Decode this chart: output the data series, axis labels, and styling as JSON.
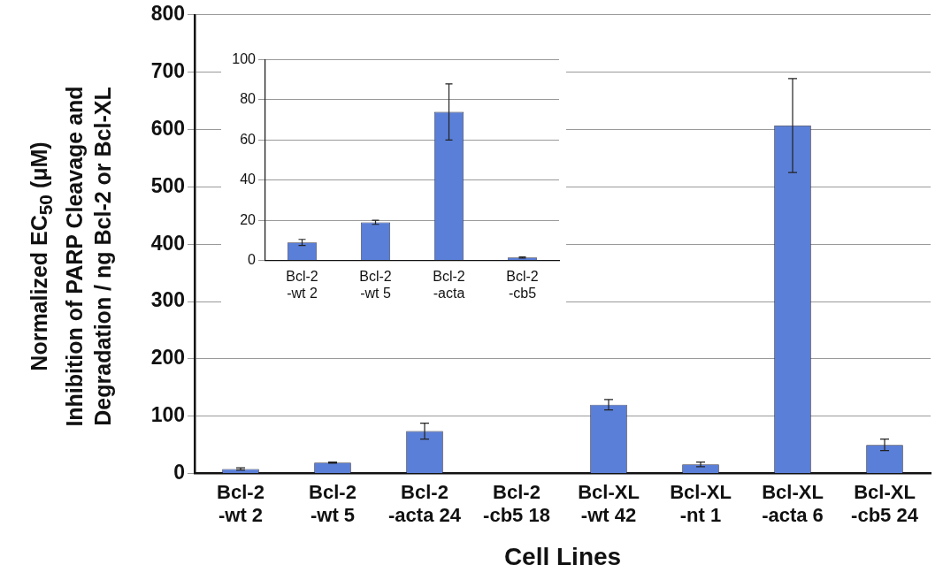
{
  "chart_data": [
    {
      "type": "bar",
      "xlabel": "Cell Lines",
      "ylabel": "Normalized EC$_{50}$ (μM)\nInhibition of PARP Cleavage and\nDegradation / ng Bcl-2 or Bcl-XL",
      "categories": [
        "Bcl-2 -wt 2",
        "Bcl-2 -wt 5",
        "Bcl-2 -acta 24",
        "Bcl-2 -cb5 18",
        "Bcl-XL -wt 42",
        "Bcl-XL -nt 1",
        "Bcl-XL -acta 6",
        "Bcl-XL -cb5 24"
      ],
      "values": [
        8,
        19,
        74,
        null,
        120,
        16,
        607,
        50
      ],
      "errors": [
        2,
        1,
        14,
        null,
        9,
        4,
        82,
        10
      ],
      "color": "#5a7fd8",
      "ylim": [
        0,
        800
      ],
      "yticks": [
        0,
        100,
        200,
        300,
        400,
        500,
        600,
        700,
        800
      ],
      "grid": "y"
    },
    {
      "type": "bar",
      "categories": [
        "Bcl-2 -wt 2",
        "Bcl-2 -wt 5",
        "Bcl-2 -acta",
        "Bcl-2 -cb5"
      ],
      "values": [
        9,
        19,
        74,
        1.5
      ],
      "errors": [
        1.5,
        1,
        14,
        0.3
      ],
      "color": "#5a7fd8",
      "ylim": [
        0,
        100
      ],
      "yticks": [
        0,
        20,
        40,
        60,
        80,
        100
      ],
      "grid": "y"
    }
  ]
}
